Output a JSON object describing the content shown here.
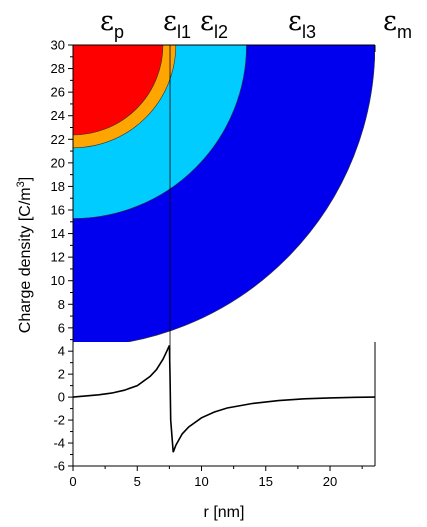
{
  "chart_data": [
    {
      "type": "heatmap",
      "description_visible": "quarter-disc layered regions",
      "region_labels": [
        {
          "symbol": "ε",
          "sub": "p"
        },
        {
          "symbol": "ε",
          "sub": "l1"
        },
        {
          "symbol": "ε",
          "sub": "l2"
        },
        {
          "symbol": "ε",
          "sub": "l3"
        },
        {
          "symbol": "ε",
          "sub": "m"
        }
      ],
      "layer_outer_radius_nm": [
        7.0,
        8.0,
        13.5,
        23.5
      ],
      "layer_colors": [
        "#ff0000",
        "#ffa500",
        "#00ccff",
        "#0000ee"
      ],
      "xlim": [
        0,
        23.5
      ],
      "ylim": [
        4.8,
        30
      ],
      "yticks": [
        6,
        8,
        10,
        12,
        14,
        16,
        18,
        20,
        22,
        24,
        26,
        28,
        30
      ]
    },
    {
      "type": "line",
      "x": [
        0,
        2,
        3,
        4,
        5,
        6,
        6.5,
        7,
        7.3,
        7.5,
        7.55,
        7.6,
        7.8,
        8,
        8.5,
        9,
        10,
        11,
        12,
        14,
        16,
        18,
        20,
        22,
        23.5
      ],
      "y": [
        0,
        0.2,
        0.35,
        0.6,
        1.0,
        1.8,
        2.4,
        3.3,
        4.0,
        4.5,
        2.0,
        -2.0,
        -4.8,
        -4.2,
        -3.2,
        -2.6,
        -1.8,
        -1.3,
        -0.95,
        -0.55,
        -0.3,
        -0.15,
        -0.07,
        -0.02,
        0
      ],
      "xlabel": "r [nm]",
      "ylabel": "Charge density [C/m³]",
      "xlim": [
        0,
        23.5
      ],
      "ylim": [
        -6,
        4.8
      ],
      "xticks": [
        0,
        5,
        10,
        15,
        20
      ],
      "yticks": [
        -6,
        -4,
        -2,
        0,
        2,
        4
      ],
      "line_color": "#000000"
    }
  ]
}
